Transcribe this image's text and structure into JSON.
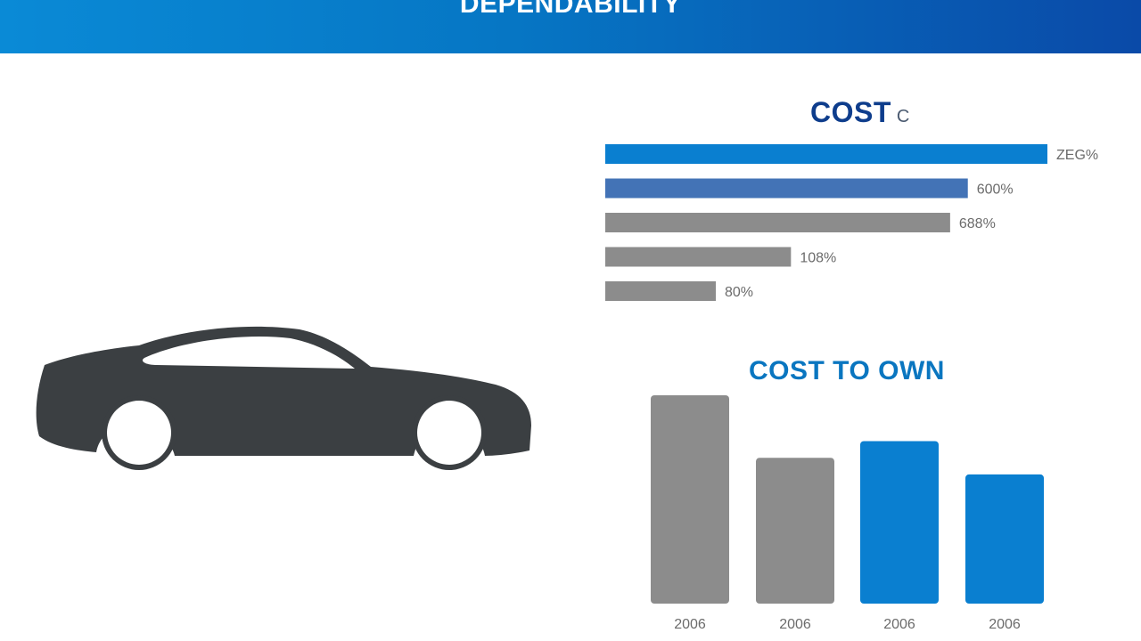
{
  "header": {
    "title": "DEPENDABILITY"
  },
  "charts": {
    "cost": {
      "title": "COST",
      "title_suffix": "C"
    },
    "cost_to_own": {
      "title": "COST TO OWN"
    }
  },
  "chart_data": [
    {
      "type": "bar",
      "orientation": "horizontal",
      "title": "COST",
      "categories": [
        "",
        "",
        "",
        "",
        ""
      ],
      "values": [
        100,
        82,
        78,
        42,
        25
      ],
      "value_labels": [
        "ZEG%",
        "600%",
        "688%",
        "108%",
        "80%"
      ],
      "colors": [
        "#0a7fd0",
        "#4373b6",
        "#8c8c8c",
        "#8c8c8c",
        "#8c8c8c"
      ],
      "xlim": [
        0,
        100
      ],
      "grid": false
    },
    {
      "type": "bar",
      "orientation": "vertical",
      "title": "COST TO OWN",
      "categories": [
        "2006",
        "2006",
        "2006",
        "2006"
      ],
      "values": [
        100,
        70,
        78,
        62
      ],
      "colors": [
        "#8c8c8c",
        "#8c8c8c",
        "#0a7fd0",
        "#0a7fd0"
      ],
      "ylim": [
        0,
        100
      ],
      "grid": false
    }
  ],
  "icons": {
    "car": "car-silhouette-icon"
  }
}
